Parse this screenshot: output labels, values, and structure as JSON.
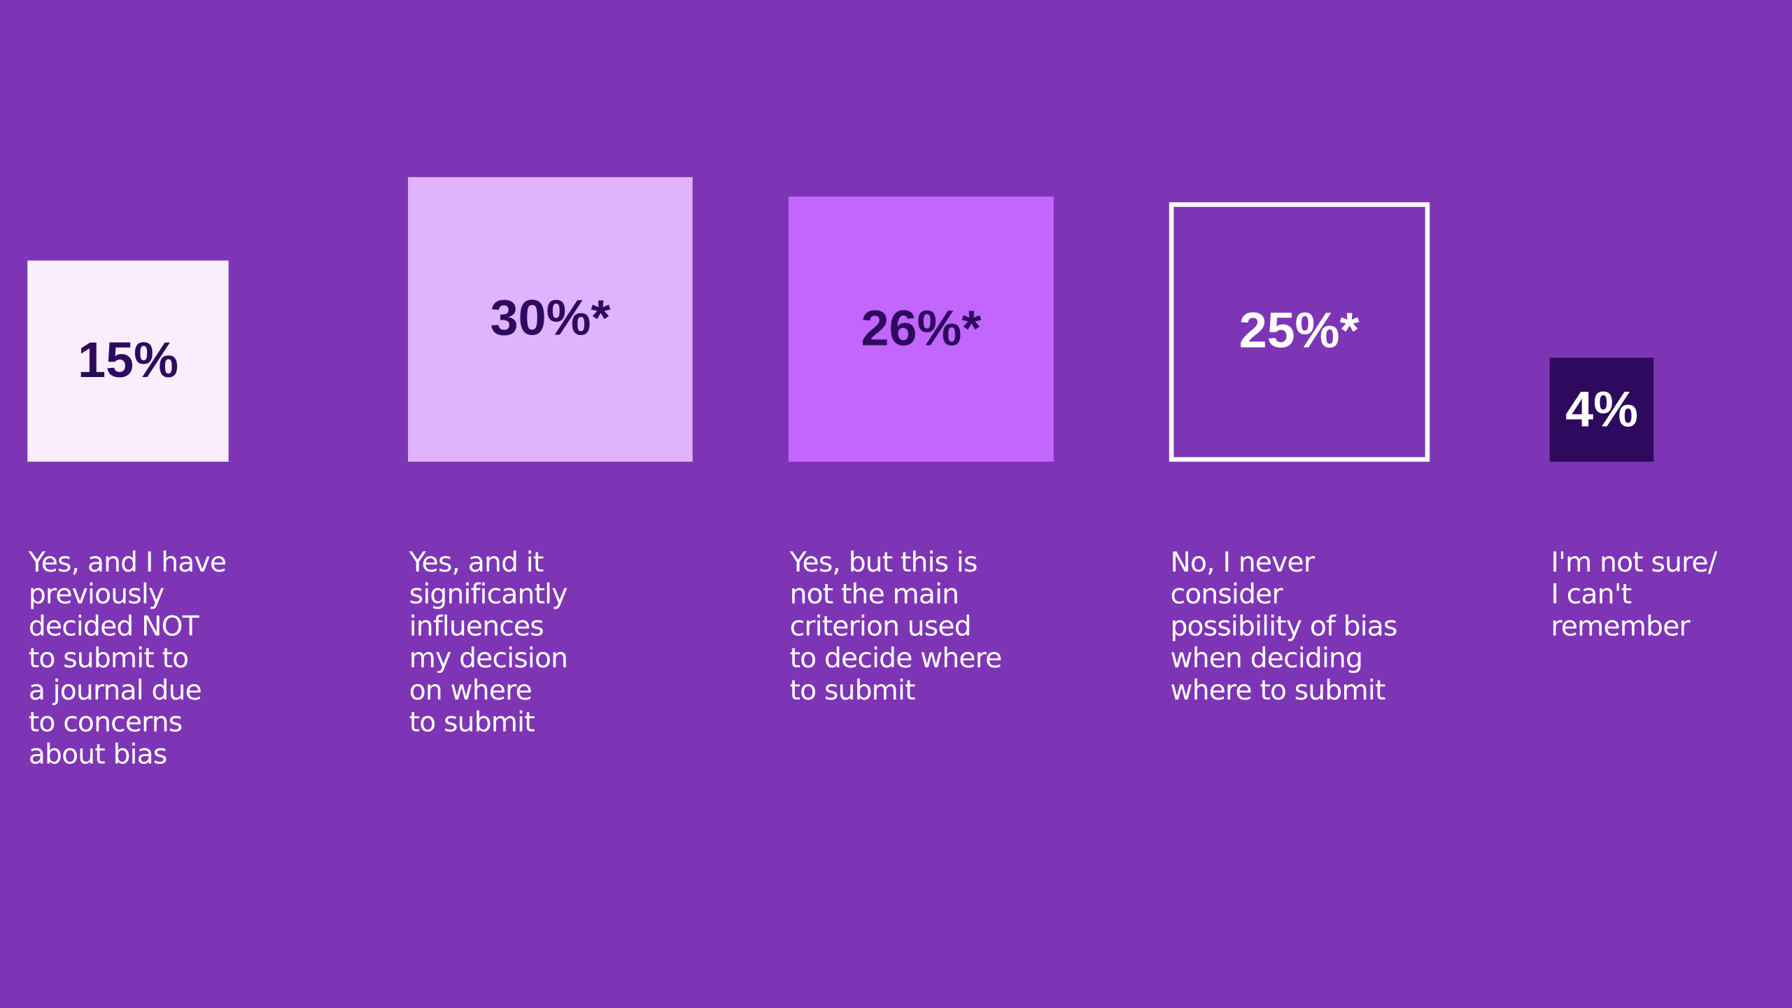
{
  "chart_data": {
    "type": "square",
    "categories": [
      "Yes, and I have\npreviously\ndecided NOT\nto submit to\na journal due\nto concerns\nabout bias",
      "Yes, and it\nsignificantly\ninfluences\nmy decision\non where\nto submit",
      "Yes, but this is\nnot the main\ncriterion used\nto decide where\nto submit",
      "No, I never\nconsider\npossibility of bias\nwhen deciding\nwhere to submit",
      "I'm not sure/\nI can't\nremember"
    ],
    "values": [
      15,
      30,
      26,
      25,
      4
    ],
    "value_labels": [
      "15%",
      "30%*",
      "26%*",
      "25%*",
      "4%"
    ],
    "colors": [
      "#f9eefd",
      "#e0b3ff",
      "#c266ff",
      "#7e35b5",
      "#2e0a5e"
    ],
    "edge_colors": [
      null,
      null,
      null,
      "#ffffff",
      null
    ],
    "label_colors": [
      "#2e0a5e",
      "#2e0a5e",
      "#2e0a5e",
      "#ffffff",
      "#ffffff"
    ],
    "background": "#7e35b5"
  }
}
